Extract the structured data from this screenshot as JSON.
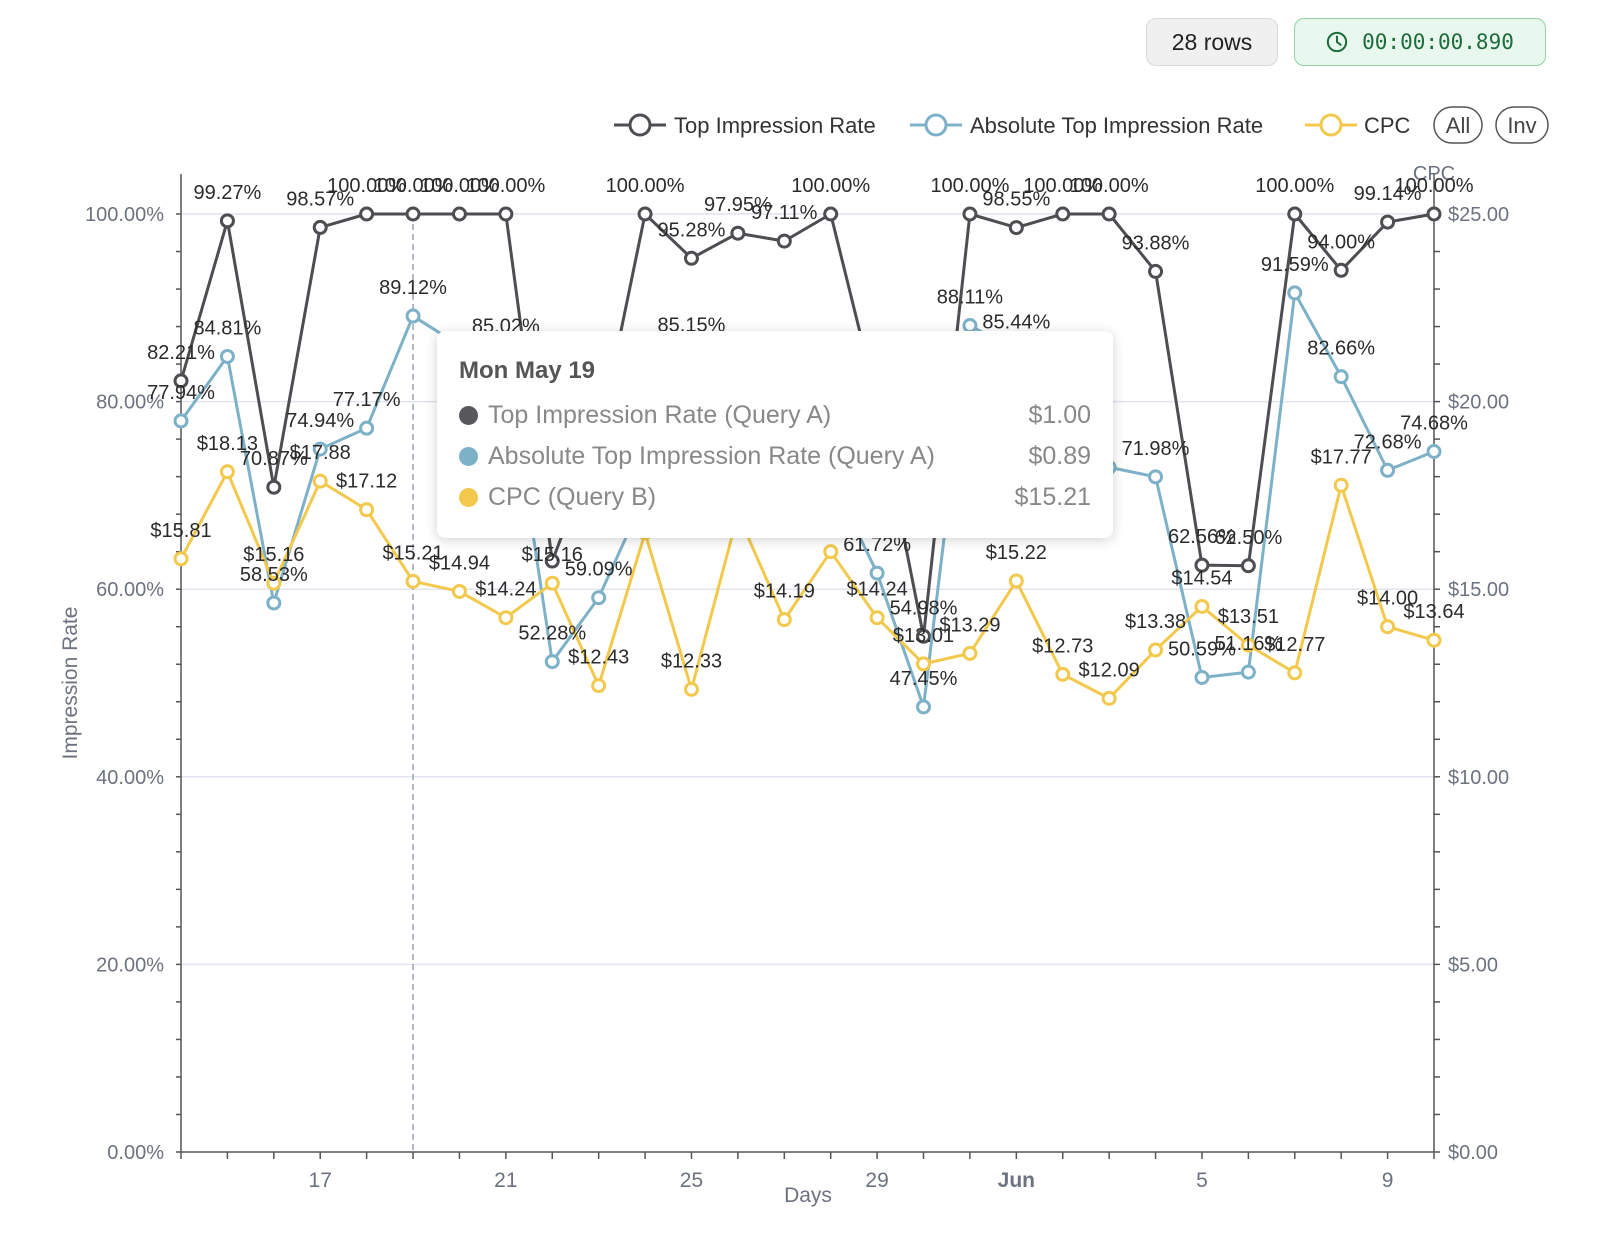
{
  "toolbar": {
    "rows_label": "28 rows",
    "timer_label": "00:00:00.890"
  },
  "legend": {
    "items": [
      {
        "label": "Top Impression Rate",
        "color": "#4d4d52"
      },
      {
        "label": "Absolute Top Impression Rate",
        "color": "#7db1c8"
      },
      {
        "label": "CPC",
        "color": "#f2c94c"
      }
    ],
    "all_label": "All",
    "inv_label": "Inv"
  },
  "tooltip": {
    "title": "Mon May 19",
    "rows": [
      {
        "label": "Top Impression Rate (Query A)",
        "value": "$1.00",
        "color": "#58585c"
      },
      {
        "label": "Absolute Top Impression Rate (Query A)",
        "value": "$0.89",
        "color": "#7db1c8"
      },
      {
        "label": "CPC (Query B)",
        "value": "$15.21",
        "color": "#f2c94c"
      }
    ]
  },
  "chart_data": {
    "type": "line",
    "x": [
      "May 14",
      "May 15",
      "May 16",
      "May 17",
      "May 18",
      "May 19",
      "May 20",
      "May 21",
      "May 22",
      "May 23",
      "May 24",
      "May 25",
      "May 26",
      "May 27",
      "May 28",
      "May 29",
      "May 30",
      "May 31",
      "Jun 1",
      "Jun 2",
      "Jun 3",
      "Jun 4",
      "Jun 5",
      "Jun 6",
      "Jun 7",
      "Jun 8",
      "Jun 9",
      "Jun 10"
    ],
    "xlabel": "Days",
    "x_ticks": [
      "17",
      "21",
      "25",
      "29",
      "Jun",
      "5",
      "9"
    ],
    "ylabel": "Impression Rate",
    "y2label": "CPC",
    "ylim": [
      0,
      100
    ],
    "y2lim": [
      0,
      25
    ],
    "y_ticks": [
      "0.00%",
      "20.00%",
      "40.00%",
      "60.00%",
      "80.00%",
      "100.00%"
    ],
    "y2_ticks": [
      "$0.00",
      "$5.00",
      "$10.00",
      "$15.00",
      "$20.00",
      "$25.00"
    ],
    "series": [
      {
        "name": "Top Impression Rate",
        "axis": "left",
        "color": "#4d4d52",
        "values": [
          82.21,
          99.27,
          70.87,
          98.57,
          100.0,
          100.0,
          100.0,
          100.0,
          63.0,
          76.0,
          100.0,
          95.28,
          97.95,
          97.11,
          100.0,
          80.0,
          54.98,
          100.0,
          98.55,
          100.0,
          100.0,
          93.88,
          62.56,
          62.5,
          100.0,
          94.0,
          99.14,
          100.0
        ],
        "labels": [
          "82.21%",
          "99.27%",
          "70.87%",
          "98.57%",
          "100.00%",
          "100.00%",
          "100.00%",
          "100.00%",
          "",
          "",
          "100.00%",
          "95.28%",
          "97.95%",
          "97.11%",
          "100.00%",
          "",
          "54.98%",
          "100.00%",
          "98.55%",
          "100.00%",
          "100.00%",
          "93.88%",
          "62.56%",
          "62.50%",
          "100.00%",
          "94.00%",
          "99.14%",
          "100.00%"
        ]
      },
      {
        "name": "Absolute Top Impression Rate",
        "axis": "left",
        "color": "#7db1c8",
        "values": [
          77.94,
          84.81,
          58.53,
          74.94,
          77.17,
          89.12,
          86.0,
          85.02,
          52.28,
          59.09,
          70.0,
          85.15,
          78.0,
          75.0,
          72.0,
          61.72,
          47.45,
          88.11,
          85.44,
          78.0,
          73.0,
          71.98,
          50.59,
          51.16,
          91.59,
          82.66,
          72.68,
          74.68
        ],
        "labels": [
          "77.94%",
          "84.81%",
          "58.53%",
          "74.94%",
          "77.17%",
          "89.12%",
          "",
          "85.02%",
          "52.28%",
          "59.09%",
          "",
          "85.15%",
          "",
          "",
          "",
          "61.72%",
          "47.45%",
          "88.11%",
          "85.44%",
          "",
          "",
          "71.98%",
          "50.59%",
          "51.16%",
          "91.59%",
          "82.66%",
          "72.68%",
          "74.68%"
        ]
      },
      {
        "name": "CPC",
        "axis": "right",
        "color": "#f2c94c",
        "values": [
          15.81,
          18.13,
          15.16,
          17.88,
          17.12,
          15.21,
          14.94,
          14.24,
          15.16,
          12.43,
          16.5,
          12.33,
          17.0,
          14.19,
          16.0,
          14.24,
          13.01,
          13.29,
          15.22,
          12.73,
          12.09,
          13.38,
          14.54,
          13.51,
          12.77,
          17.77,
          14.0,
          13.64
        ],
        "labels": [
          "$15.81",
          "$18.13",
          "$15.16",
          "$17.88",
          "$17.12",
          "$15.21",
          "$14.94",
          "$14.24",
          "$15.16",
          "$12.43",
          "",
          "$12.33",
          "",
          "$14.19",
          "",
          "$14.24",
          "$13.01",
          "$13.29",
          "$15.22",
          "$12.73",
          "$12.09",
          "$13.38",
          "$14.54",
          "$13.51",
          "$12.77",
          "$17.77",
          "$14.00",
          "$13.64"
        ]
      }
    ],
    "grid": true,
    "legend_position": "top-right",
    "highlight_x": "May 19"
  }
}
